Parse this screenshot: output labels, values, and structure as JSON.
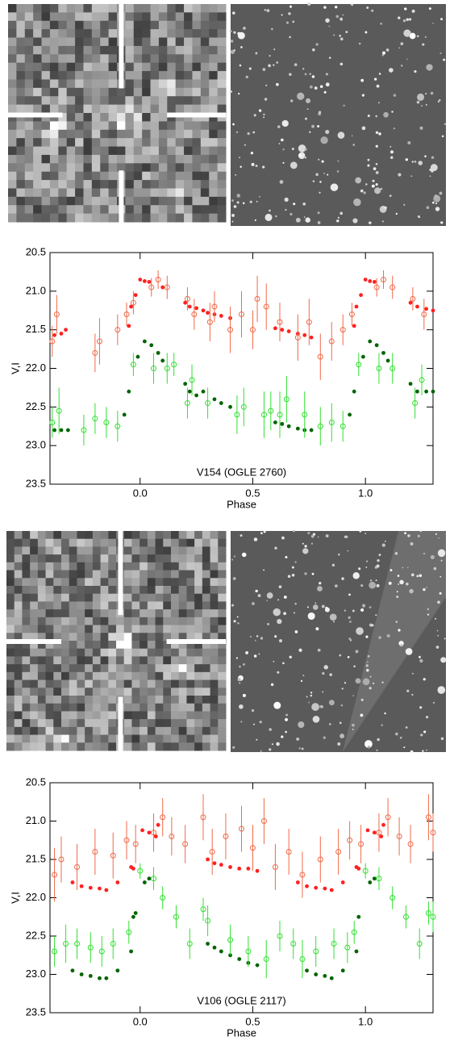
{
  "chart_data": [
    {
      "type": "scatter",
      "title": "V154  (OGLE 2760)",
      "xlabel": "Phase",
      "ylabel": "V,I",
      "xlim": [
        -0.4,
        1.3
      ],
      "ylim": [
        23.5,
        20.5
      ],
      "xticks": [
        {
          "value": 0,
          "label": "0.0"
        },
        0.5,
        {
          "value": 1,
          "label": "1.0"
        }
      ],
      "yticks": [
        20.5,
        {
          "value": 21,
          "label": "21.0"
        },
        21.5,
        {
          "value": 22,
          "label": "22.0"
        },
        22.5,
        {
          "value": 23,
          "label": "23.0"
        },
        23.5
      ],
      "series": [
        {
          "color": "#ff2020",
          "marker": "filled",
          "x": [
            -0.38,
            -0.35,
            -0.33,
            -0.05,
            -0.04,
            -0.02,
            0.0,
            0.02,
            0.04,
            0.1,
            0.2,
            0.22,
            0.25,
            0.28,
            0.3,
            0.33,
            0.36,
            0.4,
            0.6,
            0.63,
            0.66,
            0.7,
            0.73,
            0.76,
            0.95,
            0.96,
            0.98,
            1.0,
            1.02,
            1.04,
            1.2,
            1.23,
            1.27,
            1.3
          ],
          "values": [
            21.57,
            21.55,
            21.5,
            21.45,
            21.2,
            21.05,
            20.85,
            20.87,
            20.88,
            20.95,
            21.15,
            21.2,
            21.22,
            21.25,
            21.28,
            21.3,
            21.32,
            21.35,
            21.48,
            21.5,
            21.52,
            21.55,
            21.57,
            21.6,
            21.45,
            21.2,
            21.05,
            20.85,
            20.87,
            20.88,
            21.15,
            21.2,
            21.23,
            21.25
          ]
        },
        {
          "color": "#f06a4a",
          "marker": "open",
          "x": [
            -0.39,
            -0.37,
            -0.2,
            -0.18,
            -0.1,
            -0.06,
            -0.03,
            0.05,
            0.08,
            0.12,
            0.21,
            0.24,
            0.31,
            0.33,
            0.4,
            0.45,
            0.5,
            0.52,
            0.56,
            0.62,
            0.7,
            0.75,
            0.8,
            0.85,
            0.9,
            0.94,
            1.05,
            1.08,
            1.12,
            1.21,
            1.26
          ],
          "values": [
            21.65,
            21.3,
            21.8,
            21.65,
            21.5,
            21.3,
            21.15,
            20.95,
            20.85,
            20.95,
            21.1,
            21.3,
            21.4,
            21.2,
            21.5,
            21.3,
            21.5,
            21.1,
            21.2,
            21.4,
            21.6,
            21.4,
            21.85,
            21.65,
            21.5,
            21.3,
            20.95,
            20.85,
            20.95,
            21.1,
            21.3
          ],
          "errors": [
            0.2,
            0.25,
            0.25,
            0.3,
            0.2,
            0.15,
            0.15,
            0.12,
            0.12,
            0.15,
            0.15,
            0.2,
            0.25,
            0.2,
            0.3,
            0.3,
            0.25,
            0.3,
            0.3,
            0.25,
            0.3,
            0.3,
            0.3,
            0.25,
            0.2,
            0.15,
            0.12,
            0.12,
            0.15,
            0.15,
            0.2
          ]
        },
        {
          "color": "#006400",
          "marker": "filled",
          "x": [
            -0.38,
            -0.35,
            -0.32,
            -0.07,
            -0.05,
            -0.01,
            0.02,
            0.05,
            0.08,
            0.1,
            0.2,
            0.22,
            0.25,
            0.28,
            0.33,
            0.36,
            0.4,
            0.6,
            0.63,
            0.66,
            0.7,
            0.73,
            0.76,
            0.93,
            0.95,
            0.99,
            1.02,
            1.05,
            1.08,
            1.1,
            1.2,
            1.23,
            1.27,
            1.3
          ],
          "values": [
            22.8,
            22.8,
            22.8,
            22.6,
            22.3,
            21.85,
            21.65,
            21.7,
            21.8,
            21.9,
            22.2,
            22.3,
            22.35,
            22.3,
            22.4,
            22.45,
            22.5,
            22.7,
            22.72,
            22.75,
            22.78,
            22.8,
            22.8,
            22.6,
            22.3,
            21.85,
            21.65,
            21.7,
            21.8,
            21.9,
            22.2,
            22.3,
            22.3,
            22.3
          ]
        },
        {
          "color": "#33e033",
          "marker": "open",
          "x": [
            -0.39,
            -0.36,
            -0.25,
            -0.2,
            -0.15,
            -0.1,
            -0.03,
            0.06,
            0.12,
            0.15,
            0.21,
            0.23,
            0.3,
            0.43,
            0.46,
            0.55,
            0.58,
            0.62,
            0.65,
            0.73,
            0.8,
            0.85,
            0.9,
            0.97,
            1.06,
            1.12,
            1.22,
            1.25
          ],
          "values": [
            22.7,
            22.55,
            22.8,
            22.65,
            22.7,
            22.75,
            21.95,
            22.0,
            22.0,
            21.95,
            22.45,
            22.15,
            22.45,
            22.6,
            22.5,
            22.6,
            22.55,
            22.6,
            22.4,
            22.6,
            22.75,
            22.7,
            22.75,
            21.95,
            22.0,
            22.0,
            22.45,
            22.15
          ],
          "errors": [
            0.2,
            0.3,
            0.2,
            0.2,
            0.2,
            0.2,
            0.15,
            0.2,
            0.2,
            0.15,
            0.2,
            0.2,
            0.2,
            0.25,
            0.25,
            0.3,
            0.25,
            0.3,
            0.3,
            0.3,
            0.25,
            0.25,
            0.2,
            0.15,
            0.2,
            0.2,
            0.2,
            0.2
          ]
        }
      ]
    },
    {
      "type": "scatter",
      "title": "V106  (OGLE 2117)",
      "xlabel": "Phase",
      "ylabel": "V,I",
      "xlim": [
        -0.4,
        1.3
      ],
      "ylim": [
        23.5,
        20.5
      ],
      "xticks": [
        {
          "value": 0,
          "label": "0.0"
        },
        0.5,
        {
          "value": 1,
          "label": "1.0"
        }
      ],
      "yticks": [
        20.5,
        {
          "value": 21,
          "label": "21.0"
        },
        21.5,
        {
          "value": 22,
          "label": "22.0"
        },
        22.5,
        {
          "value": 23,
          "label": "23.0"
        },
        23.5
      ],
      "series": [
        {
          "color": "#ff2020",
          "marker": "filled",
          "x": [
            -0.3,
            -0.26,
            -0.22,
            -0.18,
            -0.15,
            -0.1,
            -0.04,
            -0.03,
            0.01,
            0.04,
            0.07,
            0.08,
            0.3,
            0.33,
            0.36,
            0.4,
            0.44,
            0.48,
            0.52,
            0.7,
            0.74,
            0.78,
            0.82,
            0.85,
            0.9,
            0.96,
            0.97,
            1.01,
            1.04,
            1.07,
            1.08
          ],
          "values": [
            21.8,
            21.85,
            21.87,
            21.88,
            21.9,
            21.8,
            21.6,
            21.62,
            21.12,
            21.15,
            21.2,
            21.05,
            21.5,
            21.55,
            21.57,
            21.6,
            21.62,
            21.62,
            21.65,
            21.8,
            21.85,
            21.87,
            21.88,
            21.9,
            21.8,
            21.6,
            21.62,
            21.12,
            21.15,
            21.2,
            21.05
          ]
        },
        {
          "color": "#f06a4a",
          "marker": "open",
          "x": [
            -0.38,
            -0.35,
            -0.28,
            -0.2,
            -0.12,
            -0.06,
            -0.02,
            0.06,
            0.1,
            0.14,
            0.2,
            0.28,
            0.32,
            0.38,
            0.45,
            0.5,
            0.55,
            0.6,
            0.66,
            0.72,
            0.8,
            0.88,
            0.93,
            0.98,
            1.06,
            1.1,
            1.15,
            1.2,
            1.28,
            1.3
          ],
          "values": [
            21.7,
            21.5,
            21.6,
            21.4,
            21.45,
            21.25,
            21.3,
            21.15,
            20.95,
            21.2,
            21.3,
            20.95,
            21.4,
            21.2,
            21.1,
            21.35,
            21.0,
            21.6,
            21.4,
            21.7,
            21.5,
            21.4,
            21.25,
            21.3,
            21.15,
            20.95,
            21.2,
            21.3,
            20.95,
            21.15
          ],
          "errors": [
            0.35,
            0.3,
            0.3,
            0.3,
            0.3,
            0.25,
            0.25,
            0.25,
            0.25,
            0.25,
            0.25,
            0.3,
            0.3,
            0.3,
            0.3,
            0.3,
            0.3,
            0.3,
            0.3,
            0.3,
            0.3,
            0.3,
            0.25,
            0.25,
            0.25,
            0.25,
            0.25,
            0.25,
            0.3,
            0.25
          ]
        },
        {
          "color": "#006400",
          "marker": "filled",
          "x": [
            -0.3,
            -0.26,
            -0.22,
            -0.18,
            -0.15,
            -0.1,
            -0.04,
            -0.03,
            -0.02,
            0.02,
            0.04,
            0.3,
            0.33,
            0.36,
            0.4,
            0.44,
            0.48,
            0.52,
            0.74,
            0.78,
            0.82,
            0.85,
            0.9,
            0.96,
            0.97,
            1.02,
            1.04
          ],
          "values": [
            22.95,
            23.0,
            23.02,
            23.05,
            23.05,
            22.95,
            22.7,
            22.25,
            22.2,
            21.8,
            21.75,
            22.6,
            22.65,
            22.7,
            22.75,
            22.8,
            22.85,
            22.88,
            22.95,
            23.0,
            23.02,
            23.05,
            22.95,
            22.7,
            22.25,
            21.8,
            21.75
          ]
        },
        {
          "color": "#33e033",
          "marker": "open",
          "x": [
            -0.38,
            -0.33,
            -0.28,
            -0.22,
            -0.17,
            -0.12,
            -0.05,
            0.0,
            0.06,
            0.1,
            0.16,
            0.22,
            0.28,
            0.3,
            0.4,
            0.48,
            0.56,
            0.62,
            0.68,
            0.72,
            0.78,
            0.86,
            0.92,
            0.95,
            1.0,
            1.06,
            1.12,
            1.18,
            1.24,
            1.28,
            1.3
          ],
          "values": [
            22.7,
            22.6,
            22.6,
            22.65,
            22.7,
            22.6,
            22.45,
            21.65,
            21.75,
            22.0,
            22.25,
            22.6,
            22.15,
            22.3,
            22.55,
            22.7,
            22.8,
            22.5,
            22.6,
            22.8,
            22.7,
            22.6,
            22.65,
            22.45,
            21.65,
            21.75,
            22.0,
            22.25,
            22.6,
            22.2,
            22.25
          ],
          "errors": [
            0.2,
            0.25,
            0.2,
            0.2,
            0.2,
            0.2,
            0.15,
            0.1,
            0.15,
            0.15,
            0.15,
            0.2,
            0.15,
            0.2,
            0.2,
            0.2,
            0.25,
            0.2,
            0.2,
            0.25,
            0.2,
            0.2,
            0.2,
            0.15,
            0.1,
            0.15,
            0.15,
            0.15,
            0.2,
            0.15,
            0.2
          ]
        }
      ]
    }
  ]
}
